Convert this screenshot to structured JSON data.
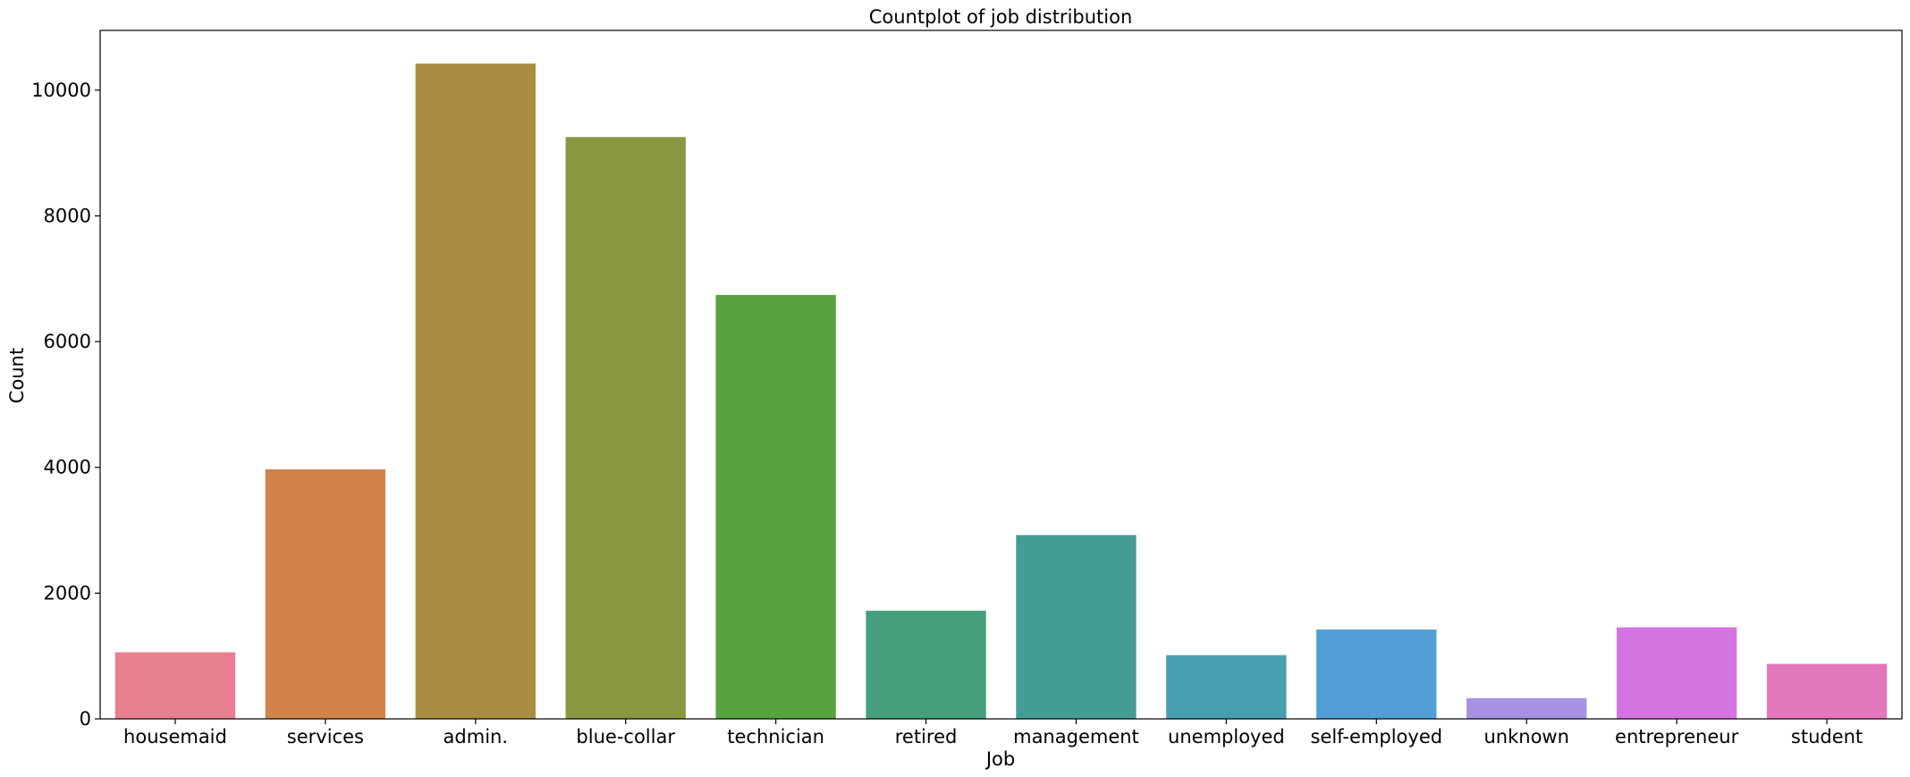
{
  "chart_data": {
    "type": "bar",
    "title": "Countplot of job distribution",
    "xlabel": "Job",
    "ylabel": "Count",
    "categories": [
      "housemaid",
      "services",
      "admin.",
      "blue-collar",
      "technician",
      "retired",
      "management",
      "unemployed",
      "self-employed",
      "unknown",
      "entrepreneur",
      "student"
    ],
    "values": [
      1060,
      3969,
      10422,
      9254,
      6743,
      1720,
      2924,
      1014,
      1421,
      330,
      1456,
      875
    ],
    "colors": [
      "#e8808f",
      "#d2834a",
      "#a98e42",
      "#8b9641",
      "#58a140",
      "#44a07c",
      "#449d95",
      "#479faf",
      "#519fd6",
      "#a792e3",
      "#d573e0",
      "#e278bb"
    ],
    "ylim": [
      0,
      10950
    ],
    "yticks": [
      0,
      2000,
      4000,
      6000,
      8000,
      10000
    ],
    "grid": false
  }
}
